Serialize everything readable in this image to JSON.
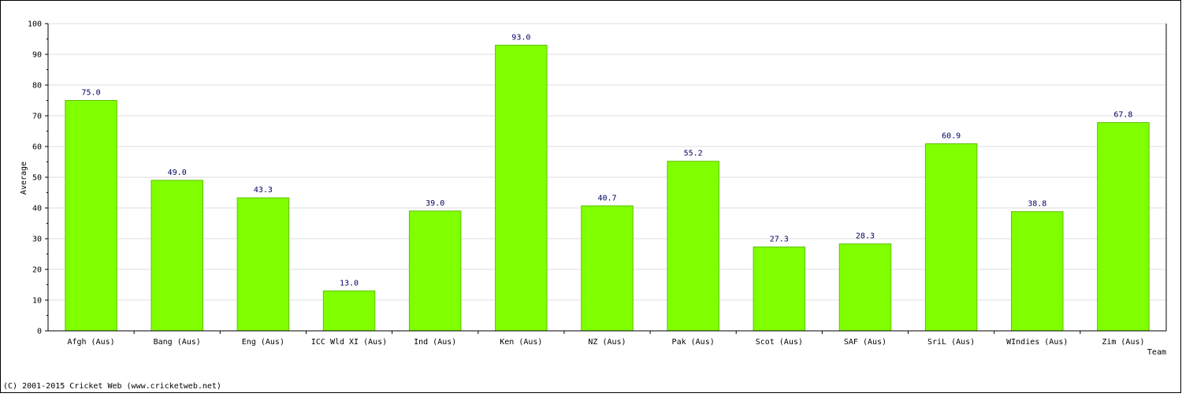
{
  "footer": {
    "copyright": "(C) 2001-2015 Cricket Web (www.cricketweb.net)"
  },
  "chart_data": {
    "type": "bar",
    "title": "",
    "xlabel": "Team",
    "ylabel": "Average",
    "ylim": [
      0,
      100
    ],
    "yticks": [
      0,
      10,
      20,
      30,
      40,
      50,
      60,
      70,
      80,
      90,
      100
    ],
    "grid": true,
    "categories": [
      "Afgh (Aus)",
      "Bang (Aus)",
      "Eng (Aus)",
      "ICC Wld XI (Aus)",
      "Ind (Aus)",
      "Ken (Aus)",
      "NZ (Aus)",
      "Pak (Aus)",
      "Scot (Aus)",
      "SAF (Aus)",
      "SriL (Aus)",
      "WIndies (Aus)",
      "Zim (Aus)"
    ],
    "values": [
      75.0,
      49.0,
      43.3,
      13.0,
      39.0,
      93.0,
      40.7,
      55.2,
      27.3,
      28.3,
      60.9,
      38.8,
      67.8
    ],
    "data_labels": [
      "75.0",
      "49.0",
      "43.3",
      "13.0",
      "39.0",
      "93.0",
      "40.7",
      "55.2",
      "27.3",
      "28.3",
      "60.9",
      "38.8",
      "67.8"
    ],
    "colors": {
      "bar_fill": "#80ff00",
      "bar_stroke": "#5fbf00",
      "grid": "#dddddd",
      "label": "#000066",
      "axis": "#000000"
    }
  }
}
